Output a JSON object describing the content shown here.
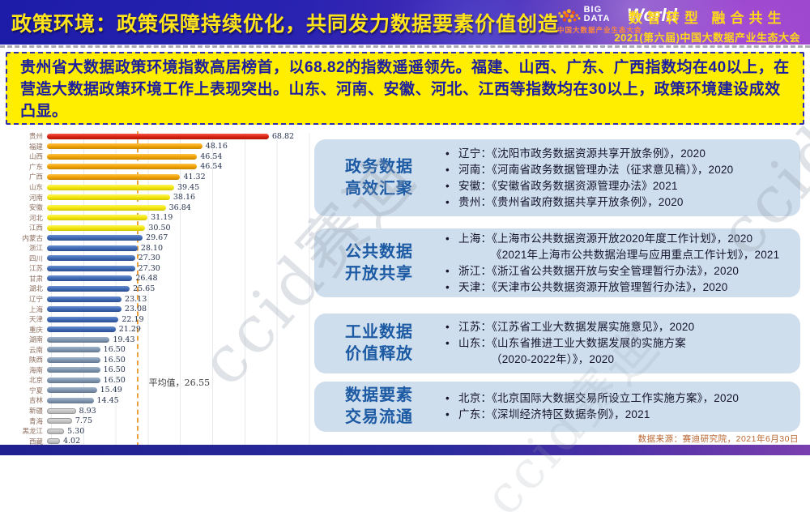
{
  "header": {
    "title": "政策环境：政策保障持续优化，共同发力数据要素价值创造",
    "logo": {
      "big_data": "BIG DATA",
      "world": "World",
      "subtitle": "中国大数据产业生态大会"
    },
    "slogan_line1": "数智转型 融合共生",
    "slogan_line2": "2021(第六届)中国大数据产业生态大会"
  },
  "summary_box": {
    "text": "贵州省大数据政策环境指数高居榜首，以68.82的指数遥遥领先。福建、山西、广东、广西指数均在40以上，在营造大数据政策环境工作上表现突出。山东、河南、安徽、河北、江西等指数均在30以上，政策环境建设成效凸显。"
  },
  "chart_data": {
    "type": "bar",
    "orientation": "horizontal",
    "title": "",
    "xlabel": "",
    "ylabel": "",
    "xlim": [
      0,
      80
    ],
    "gridline_interval": 10,
    "grid": true,
    "categories": [
      "贵州",
      "福建",
      "山西",
      "广东",
      "广西",
      "山东",
      "河南",
      "安徽",
      "河北",
      "江西",
      "内蒙古",
      "浙江",
      "四川",
      "江苏",
      "甘肃",
      "湖北",
      "辽宁",
      "上海",
      "天津",
      "重庆",
      "湖南",
      "云南",
      "陕西",
      "海南",
      "北京",
      "宁夏",
      "吉林",
      "新疆",
      "青海",
      "黑龙江",
      "西藏"
    ],
    "values": [
      68.82,
      48.16,
      46.54,
      46.54,
      41.32,
      39.45,
      38.16,
      36.84,
      31.19,
      30.5,
      29.67,
      28.1,
      27.3,
      27.3,
      26.48,
      25.65,
      23.13,
      23.08,
      22.19,
      21.29,
      19.43,
      16.5,
      16.5,
      16.5,
      16.5,
      15.49,
      14.45,
      8.93,
      7.75,
      5.3,
      4.02
    ],
    "value_labels": [
      "68.82",
      "48.16",
      "46.54",
      "46.54",
      "41.32",
      "39.45",
      "38.16",
      "36.84",
      "31.19",
      "30.50",
      "29.67",
      "28.10",
      "27.30",
      "27.30",
      "26.48",
      "25.65",
      "23.13",
      "23.08",
      "22.19",
      "21.29",
      "19.43",
      "16.50",
      "16.50",
      "16.50",
      "16.50",
      "15.49",
      "14.45",
      "8.93",
      "7.75",
      "5.30",
      "4.02"
    ],
    "groups": [
      "red",
      "orange",
      "orange",
      "orange",
      "orange",
      "yellow",
      "yellow",
      "yellow",
      "yellow",
      "yellow",
      "blue",
      "blue",
      "blue",
      "blue",
      "blue",
      "blue",
      "blue",
      "blue",
      "blue",
      "blue",
      "steel",
      "steel",
      "steel",
      "steel",
      "steel",
      "steel",
      "steel",
      "gray",
      "gray",
      "gray",
      "gray"
    ],
    "palette": {
      "red": [
        "#f4574a",
        "#d92312",
        "#b01505"
      ],
      "orange": [
        "#ffc44d",
        "#f0a202",
        "#c78600"
      ],
      "yellow": [
        "#fdf65e",
        "#f2e60d",
        "#d2c400"
      ],
      "blue": [
        "#6b8fd0",
        "#3e68b2",
        "#2d4f91"
      ],
      "steel": [
        "#a3b5ca",
        "#7e95af",
        "#64788f"
      ],
      "gray": [
        "#e0e0e0",
        "#c6c6c6",
        "#a8a8a8"
      ]
    },
    "average_value": 26.55,
    "average_label": "平均值，26.55",
    "average_line_color": "#eaa13c",
    "legend_position": "none"
  },
  "policy_blocks": [
    {
      "title_lines": [
        "政务数据",
        "高效汇聚"
      ],
      "lines": [
        {
          "bullet": true,
          "text": "辽宁：《沈阳市政务数据资源共享开放条例》，2020"
        },
        {
          "bullet": true,
          "text": "河南：《河南省政务数据管理办法（征求意见稿）》，2020"
        },
        {
          "bullet": true,
          "text": "安徽：《安徽省政务数据资源管理办法》2021"
        },
        {
          "bullet": true,
          "text": "贵州：《贵州省政府数据共享开放条例》，2020"
        }
      ]
    },
    {
      "title_lines": [
        "公共数据",
        "开放共享"
      ],
      "lines": [
        {
          "bullet": true,
          "text": "上海：《上海市公共数据资源开放2020年度工作计划》，2020"
        },
        {
          "bullet": false,
          "text": "《2021年上海市公共数据治理与应用重点工作计划》，2021"
        },
        {
          "bullet": true,
          "text": "浙江：《浙江省公共数据开放与安全管理暂行办法》，2020"
        },
        {
          "bullet": true,
          "text": "天津：《天津市公共数据资源开放管理暂行办法》，2020"
        }
      ]
    },
    {
      "title_lines": [
        "工业数据",
        "价值释放"
      ],
      "lines": [
        {
          "bullet": true,
          "text": "江苏：《江苏省工业大数据发展实施意见》，2020"
        },
        {
          "bullet": true,
          "text": "山东：《山东省推进工业大数据发展的实施方案"
        },
        {
          "bullet": false,
          "text": "（2020-2022年）》，2020"
        }
      ]
    },
    {
      "title_lines": [
        "数据要素",
        "交易流通"
      ],
      "lines": [
        {
          "bullet": true,
          "text": "北京：《北京国际大数据交易所设立工作实施方案》，2020"
        },
        {
          "bullet": true,
          "text": "广东：《深圳经济特区数据条例》，2021"
        }
      ]
    }
  ],
  "footer": {
    "source": "数据来源：赛迪研究院，2021年6月30日"
  },
  "watermark": "ccid赛迪"
}
